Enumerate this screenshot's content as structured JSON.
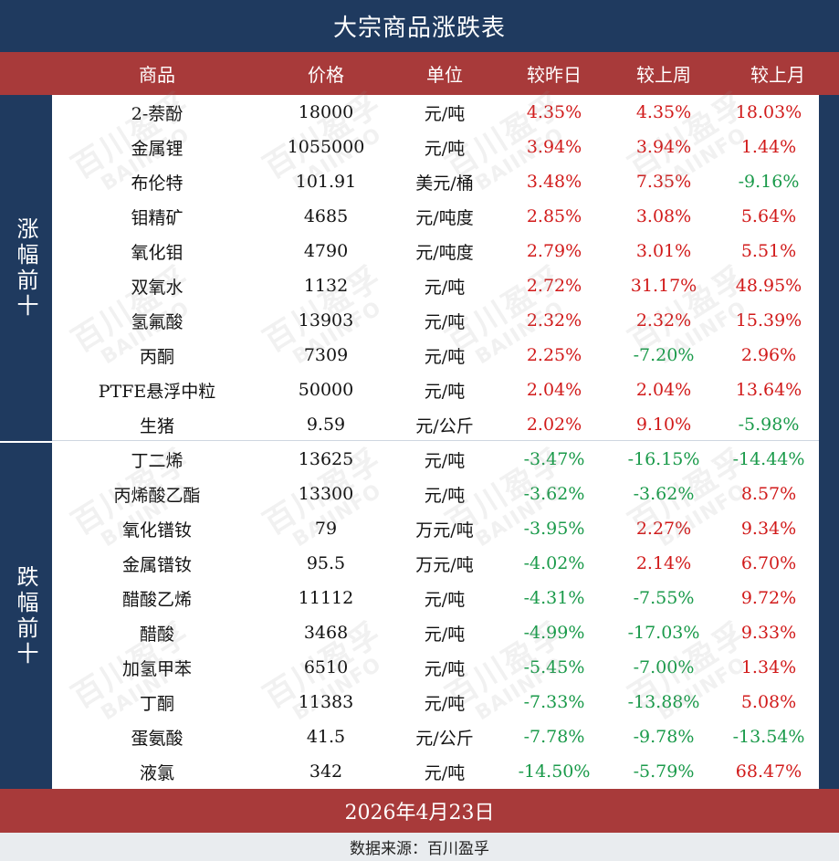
{
  "title": "大宗商品涨跌表",
  "headers": {
    "name": "商品",
    "price": "价格",
    "unit": "单位",
    "day": "较昨日",
    "week": "较上周",
    "month": "较上月"
  },
  "groups": {
    "gainers_label": "涨幅前十",
    "losers_label": "跌幅前十"
  },
  "gainers": [
    {
      "name": "2-萘酚",
      "price": "18000",
      "unit": "元/吨",
      "day": "4.35%",
      "week": "4.35%",
      "month": "18.03%"
    },
    {
      "name": "金属锂",
      "price": "1055000",
      "unit": "元/吨",
      "day": "3.94%",
      "week": "3.94%",
      "month": "1.44%"
    },
    {
      "name": "布伦特",
      "price": "101.91",
      "unit": "美元/桶",
      "day": "3.48%",
      "week": "7.35%",
      "month": "-9.16%"
    },
    {
      "name": "钼精矿",
      "price": "4685",
      "unit": "元/吨度",
      "day": "2.85%",
      "week": "3.08%",
      "month": "5.64%"
    },
    {
      "name": "氧化钼",
      "price": "4790",
      "unit": "元/吨度",
      "day": "2.79%",
      "week": "3.01%",
      "month": "5.51%"
    },
    {
      "name": "双氧水",
      "price": "1132",
      "unit": "元/吨",
      "day": "2.72%",
      "week": "31.17%",
      "month": "48.95%"
    },
    {
      "name": "氢氟酸",
      "price": "13903",
      "unit": "元/吨",
      "day": "2.32%",
      "week": "2.32%",
      "month": "15.39%"
    },
    {
      "name": "丙酮",
      "price": "7309",
      "unit": "元/吨",
      "day": "2.25%",
      "week": "-7.20%",
      "month": "2.96%"
    },
    {
      "name": "PTFE悬浮中粒",
      "price": "50000",
      "unit": "元/吨",
      "day": "2.04%",
      "week": "2.04%",
      "month": "13.64%"
    },
    {
      "name": "生猪",
      "price": "9.59",
      "unit": "元/公斤",
      "day": "2.02%",
      "week": "9.10%",
      "month": "-5.98%"
    }
  ],
  "losers": [
    {
      "name": "丁二烯",
      "price": "13625",
      "unit": "元/吨",
      "day": "-3.47%",
      "week": "-16.15%",
      "month": "-14.44%"
    },
    {
      "name": "丙烯酸乙酯",
      "price": "13300",
      "unit": "元/吨",
      "day": "-3.62%",
      "week": "-3.62%",
      "month": "8.57%"
    },
    {
      "name": "氧化镨钕",
      "price": "79",
      "unit": "万元/吨",
      "day": "-3.95%",
      "week": "2.27%",
      "month": "9.34%"
    },
    {
      "name": "金属镨钕",
      "price": "95.5",
      "unit": "万元/吨",
      "day": "-4.02%",
      "week": "2.14%",
      "month": "6.70%"
    },
    {
      "name": "醋酸乙烯",
      "price": "11112",
      "unit": "元/吨",
      "day": "-4.31%",
      "week": "-7.55%",
      "month": "9.72%"
    },
    {
      "name": "醋酸",
      "price": "3468",
      "unit": "元/吨",
      "day": "-4.99%",
      "week": "-17.03%",
      "month": "9.33%"
    },
    {
      "name": "加氢甲苯",
      "price": "6510",
      "unit": "元/吨",
      "day": "-5.45%",
      "week": "-7.00%",
      "month": "1.34%"
    },
    {
      "name": "丁酮",
      "price": "11383",
      "unit": "元/吨",
      "day": "-7.33%",
      "week": "-13.88%",
      "month": "5.08%"
    },
    {
      "name": "蛋氨酸",
      "price": "41.5",
      "unit": "元/公斤",
      "day": "-7.78%",
      "week": "-9.78%",
      "month": "-13.54%"
    },
    {
      "name": "液氯",
      "price": "342",
      "unit": "元/吨",
      "day": "-14.50%",
      "week": "-5.79%",
      "month": "68.47%"
    }
  ],
  "date": "2026年4月23日",
  "source": "数据来源：百川盈孚",
  "watermark": {
    "line1": "百川盈孚",
    "line2": "BAIINFO"
  },
  "colors": {
    "navy": "#1f3a5f",
    "header_red": "#a83a3a",
    "up_red": "#d11a1a",
    "down_green": "#1a9a4a"
  }
}
